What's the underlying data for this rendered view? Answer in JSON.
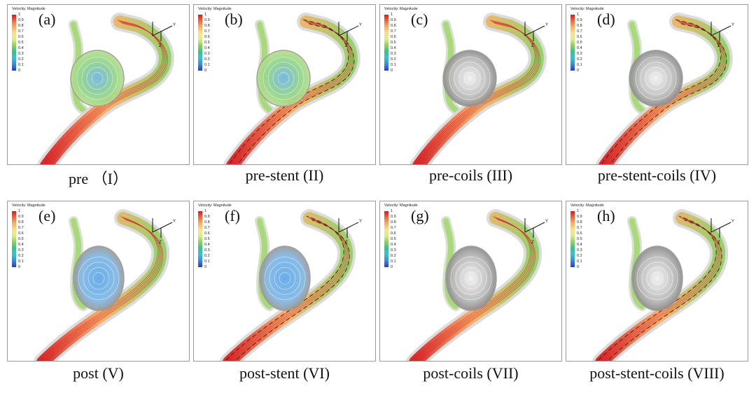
{
  "legend": {
    "title": "Velocity: Magnitude",
    "ticks": [
      "1",
      "0.9",
      "0.8",
      "0.7",
      "0.6",
      "0.5",
      "0.4",
      "0.3",
      "0.2",
      "0.1",
      "0"
    ]
  },
  "axes": {
    "y_label": "Y",
    "z_label": "Z"
  },
  "colors": {
    "high": "#d7191c",
    "mid": "#91cf60",
    "low": "#1f3fd0",
    "coil": "#b8b8b8",
    "stent": "#222222"
  },
  "panels": [
    {
      "letter": "(a)",
      "caption": "pre （I）",
      "stage": "pre",
      "stent": false,
      "coils": false
    },
    {
      "letter": "(b)",
      "caption": "pre-stent (II)",
      "stage": "pre",
      "stent": true,
      "coils": false
    },
    {
      "letter": "(c)",
      "caption": "pre-coils (III)",
      "stage": "pre",
      "stent": false,
      "coils": true
    },
    {
      "letter": "(d)",
      "caption": "pre-stent-coils (IV)",
      "stage": "pre",
      "stent": true,
      "coils": true
    },
    {
      "letter": "(e)",
      "caption": "post (V)",
      "stage": "post",
      "stent": false,
      "coils": false
    },
    {
      "letter": "(f)",
      "caption": "post-stent (VI)",
      "stage": "post",
      "stent": true,
      "coils": false
    },
    {
      "letter": "(g)",
      "caption": "post-coils (VII)",
      "stage": "post",
      "stent": false,
      "coils": true
    },
    {
      "letter": "(h)",
      "caption": "post-stent-coils (VIII)",
      "stage": "post",
      "stent": true,
      "coils": true
    }
  ]
}
